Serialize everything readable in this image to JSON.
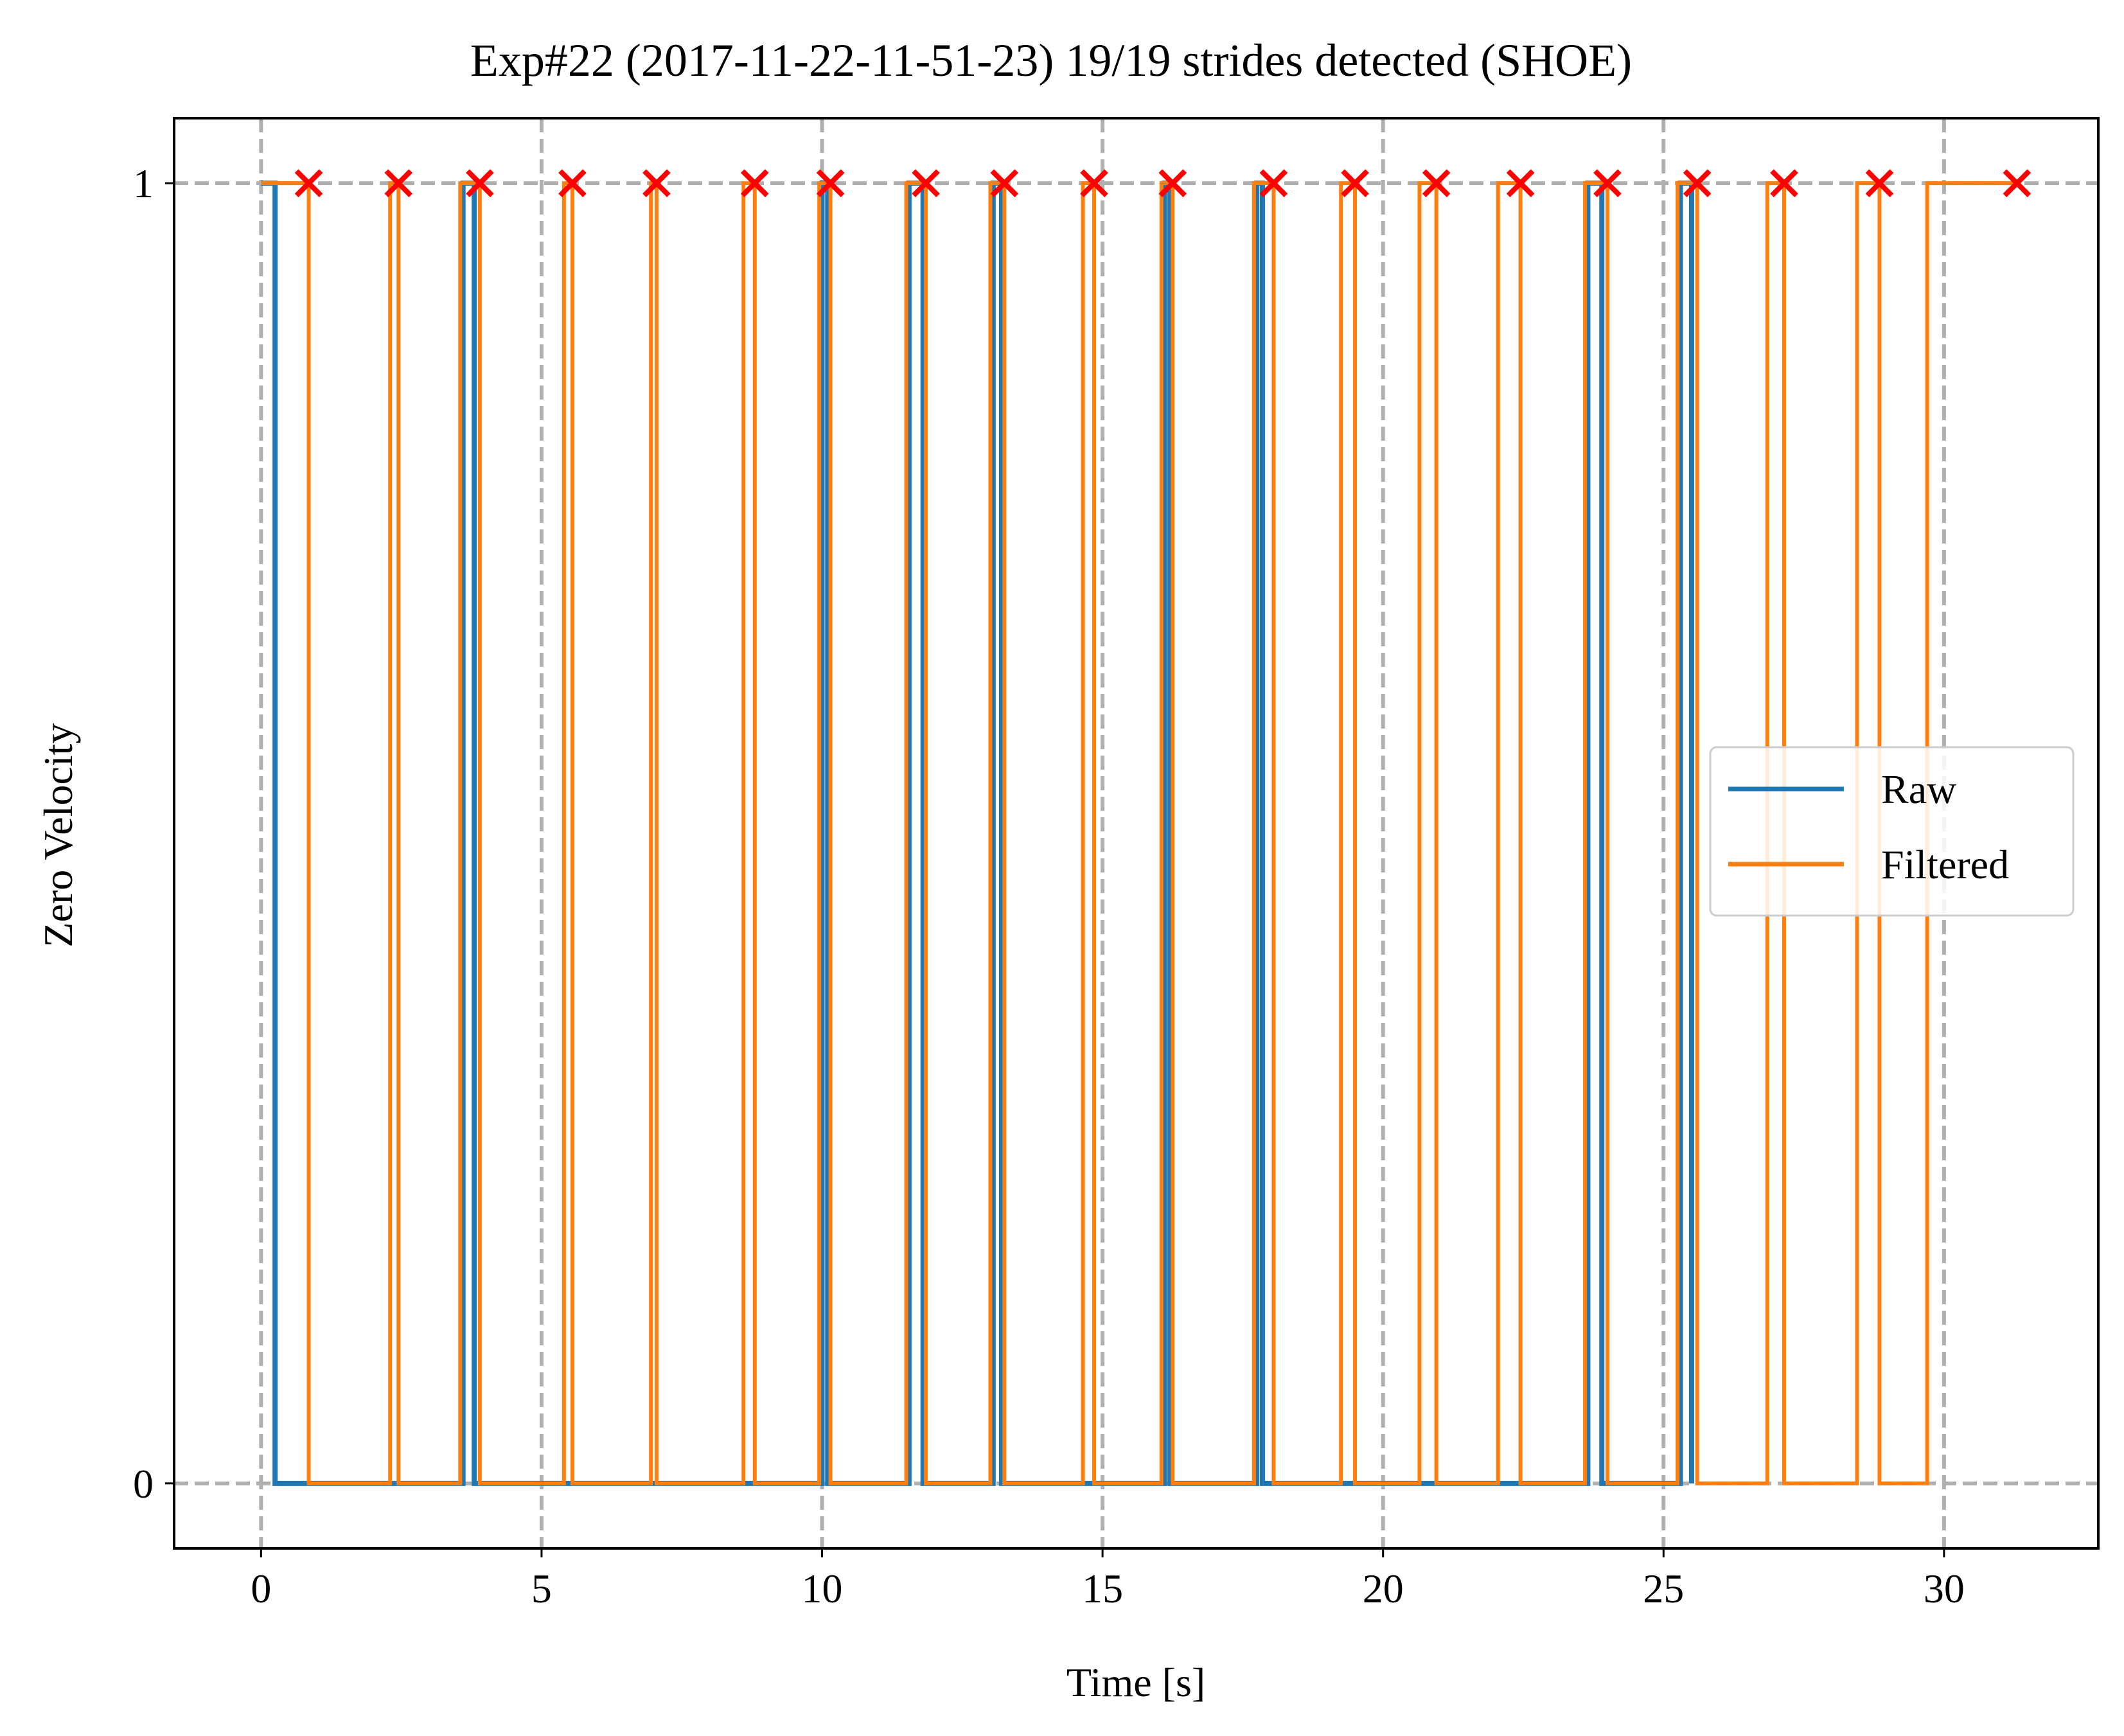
{
  "chart_data": {
    "type": "line",
    "title": "Exp#22 (2017-11-22-11-51-23) 19/19 strides detected (SHOE)",
    "xlabel": "Time [s]",
    "ylabel": "Zero Velocity",
    "xlim": [
      -1.55,
      32.75
    ],
    "ylim": [
      -0.05,
      1.05
    ],
    "xticks": [
      0,
      5,
      10,
      15,
      20,
      25,
      30
    ],
    "yticks": [
      0,
      1
    ],
    "grid": true,
    "legend_position": "center-right",
    "colors": {
      "raw": "#1f77b4",
      "filtered": "#ff7f0e",
      "markers": "#ff0000",
      "grid": "#b0b0b0"
    },
    "series": [
      {
        "name": "Raw",
        "key": "raw",
        "intervals_value_1": [
          [
            0,
            0.25
          ],
          [
            3.6,
            3.8
          ],
          [
            10.0,
            10.1
          ],
          [
            11.55,
            11.8
          ],
          [
            13.05,
            13.2
          ],
          [
            16.1,
            16.2
          ],
          [
            17.75,
            17.85
          ],
          [
            23.65,
            23.9
          ],
          [
            25.3,
            25.5
          ]
        ]
      },
      {
        "name": "Filtered",
        "key": "filtered",
        "intervals_value_1": [
          [
            0,
            0.85
          ],
          [
            2.3,
            2.45
          ],
          [
            3.55,
            3.9
          ],
          [
            5.4,
            5.55
          ],
          [
            6.95,
            7.05
          ],
          [
            8.6,
            8.8
          ],
          [
            9.95,
            10.15
          ],
          [
            11.5,
            11.85
          ],
          [
            13.0,
            13.25
          ],
          [
            14.65,
            14.85
          ],
          [
            16.05,
            16.25
          ],
          [
            17.7,
            18.05
          ],
          [
            19.25,
            19.5
          ],
          [
            20.65,
            20.95
          ],
          [
            22.05,
            22.45
          ],
          [
            23.6,
            24.0
          ],
          [
            25.25,
            25.6
          ],
          [
            26.85,
            27.15
          ],
          [
            28.45,
            28.85
          ],
          [
            29.7,
            31.3
          ]
        ],
        "t_end": 31.3
      }
    ],
    "strides_detected": {
      "marker": "x",
      "y": 1,
      "x": [
        0.85,
        2.45,
        3.9,
        5.55,
        7.05,
        8.8,
        10.15,
        11.85,
        13.25,
        14.85,
        16.25,
        18.05,
        19.5,
        20.95,
        22.45,
        24.0,
        25.6,
        27.15,
        28.85,
        31.3
      ]
    }
  }
}
